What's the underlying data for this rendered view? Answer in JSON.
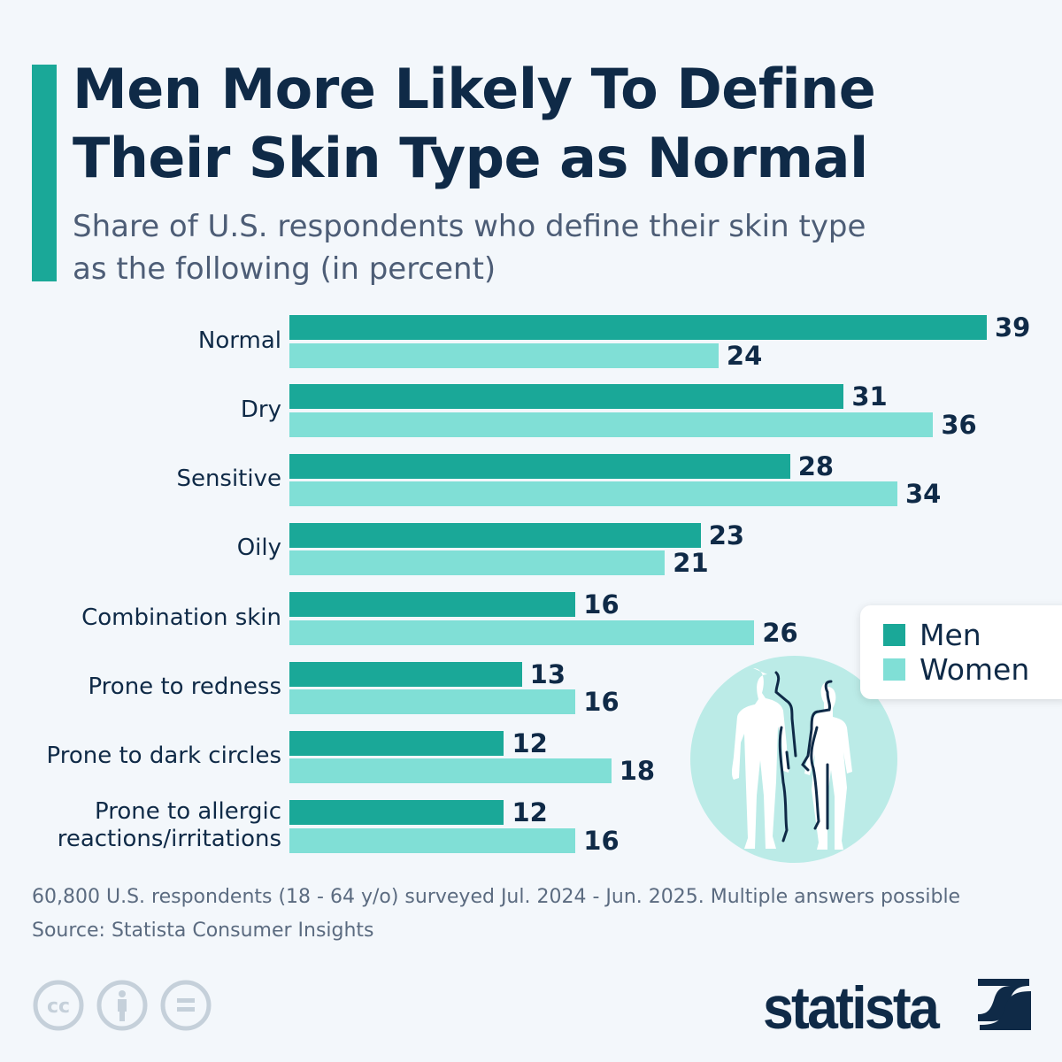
{
  "header": {
    "title_line1": "Men More Likely To Define",
    "title_line2": "Their Skin Type as Normal",
    "subtitle_line1": "Share of U.S. respondents who define their skin type",
    "subtitle_line2": "as the following (in percent)"
  },
  "chart_data": {
    "type": "bar",
    "orientation": "horizontal",
    "title": "Men More Likely To Define Their Skin Type as Normal",
    "subtitle": "Share of U.S. respondents who define their skin type as the following (in percent)",
    "categories": [
      "Normal",
      "Dry",
      "Sensitive",
      "Oily",
      "Combination skin",
      "Prone to redness",
      "Prone to dark circles",
      "Prone to allergic reactions/irritations"
    ],
    "category_lines": [
      [
        "Normal"
      ],
      [
        "Dry"
      ],
      [
        "Sensitive"
      ],
      [
        "Oily"
      ],
      [
        "Combination skin"
      ],
      [
        "Prone to redness"
      ],
      [
        "Prone to dark circles"
      ],
      [
        "Prone to allergic",
        "reactions/irritations"
      ]
    ],
    "series": [
      {
        "name": "Men",
        "color": "#1aa898",
        "values": [
          39,
          31,
          28,
          23,
          16,
          13,
          12,
          12
        ]
      },
      {
        "name": "Women",
        "color": "#80dfd6",
        "values": [
          24,
          36,
          34,
          21,
          26,
          16,
          18,
          16
        ]
      }
    ],
    "xlim": [
      0,
      39
    ],
    "grid": false,
    "data_labels": true,
    "legend_position": "right"
  },
  "footer": {
    "note": "60,800 U.S. respondents (18 - 64 y/o) surveyed Jul. 2024 - Jun. 2025. Multiple answers possible",
    "source": "Source: Statista Consumer Insights",
    "logo_text": "statista"
  }
}
